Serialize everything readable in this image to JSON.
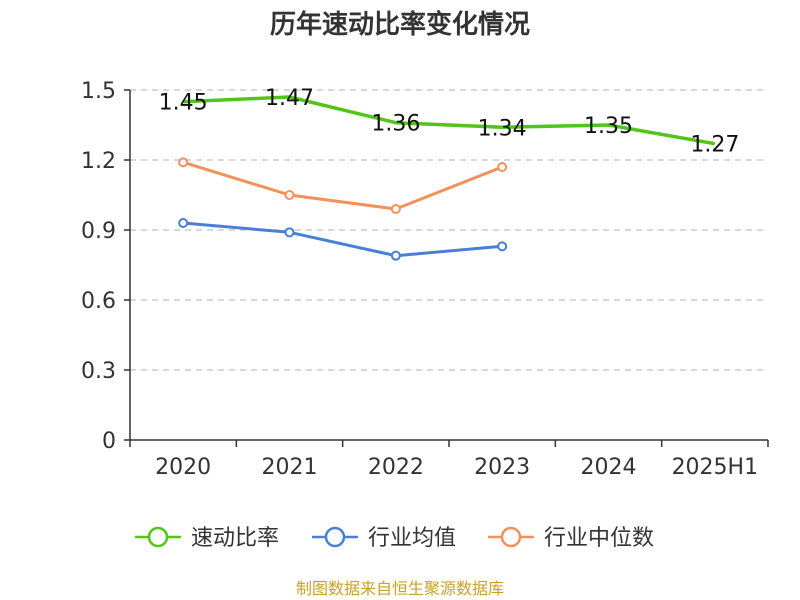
{
  "title": "历年速动比率变化情况",
  "source": "制图数据来自恒生聚源数据库",
  "colors": {
    "quick_ratio": "#52c41a",
    "industry_avg": "#4a7fd6",
    "industry_median": "#f5905a",
    "grid": "#cccccc",
    "axis": "#333333",
    "source": "#c9a227"
  },
  "chart_data": {
    "type": "line",
    "title": "历年速动比率变化情况",
    "xlabel": "",
    "ylabel": "",
    "categories": [
      "2020",
      "2021",
      "2022",
      "2023",
      "2024",
      "2025H1"
    ],
    "ylim": [
      0,
      1.5
    ],
    "yticks": [
      "0",
      "0.3",
      "0.6",
      "0.9",
      "1.2",
      "1.5"
    ],
    "grid": "horizontal dashed",
    "legend": "bottom",
    "series": [
      {
        "name": "速动比率",
        "color": "#52c41a",
        "values": [
          1.45,
          1.47,
          1.36,
          1.34,
          1.35,
          1.27
        ],
        "labels": [
          "1.45",
          "1.47",
          "1.36",
          "1.34",
          "1.35",
          "1.27"
        ],
        "markers": false
      },
      {
        "name": "行业均值",
        "color": "#4a7fd6",
        "values": [
          0.93,
          0.89,
          0.79,
          0.83,
          null,
          null
        ],
        "markers": true
      },
      {
        "name": "行业中位数",
        "color": "#f5905a",
        "values": [
          1.19,
          1.05,
          0.99,
          1.17,
          null,
          null
        ],
        "markers": true
      }
    ]
  }
}
